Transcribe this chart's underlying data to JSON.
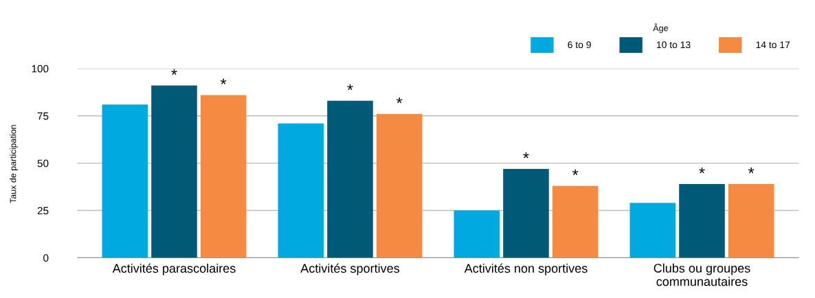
{
  "chart_data": {
    "type": "bar",
    "categories": [
      "Activités parascolaires",
      "Activités sportives",
      "Activités non sportives",
      "Clubs ou groupes\ncommunautaires"
    ],
    "series": [
      {
        "name": "6 to 9",
        "color": "#00a9e0",
        "values": [
          81,
          71,
          25,
          29
        ],
        "value_labels": [
          null,
          null,
          null,
          null
        ]
      },
      {
        "name": "10 to 13",
        "color": "#005a77",
        "values": [
          91,
          83,
          47,
          39
        ],
        "value_labels": [
          "*",
          "*",
          "*",
          "*"
        ]
      },
      {
        "name": "14 to 17",
        "color": "#f58b42",
        "values": [
          86,
          76,
          38,
          39
        ],
        "value_labels": [
          "*",
          "*",
          "*",
          "*"
        ]
      }
    ],
    "ylabel": "Taux de participation",
    "legend_title": "Âge",
    "ylim": [
      0,
      100
    ],
    "yticks": [
      0,
      25,
      50,
      75,
      100
    ],
    "grid": "y",
    "legend": "top right"
  }
}
